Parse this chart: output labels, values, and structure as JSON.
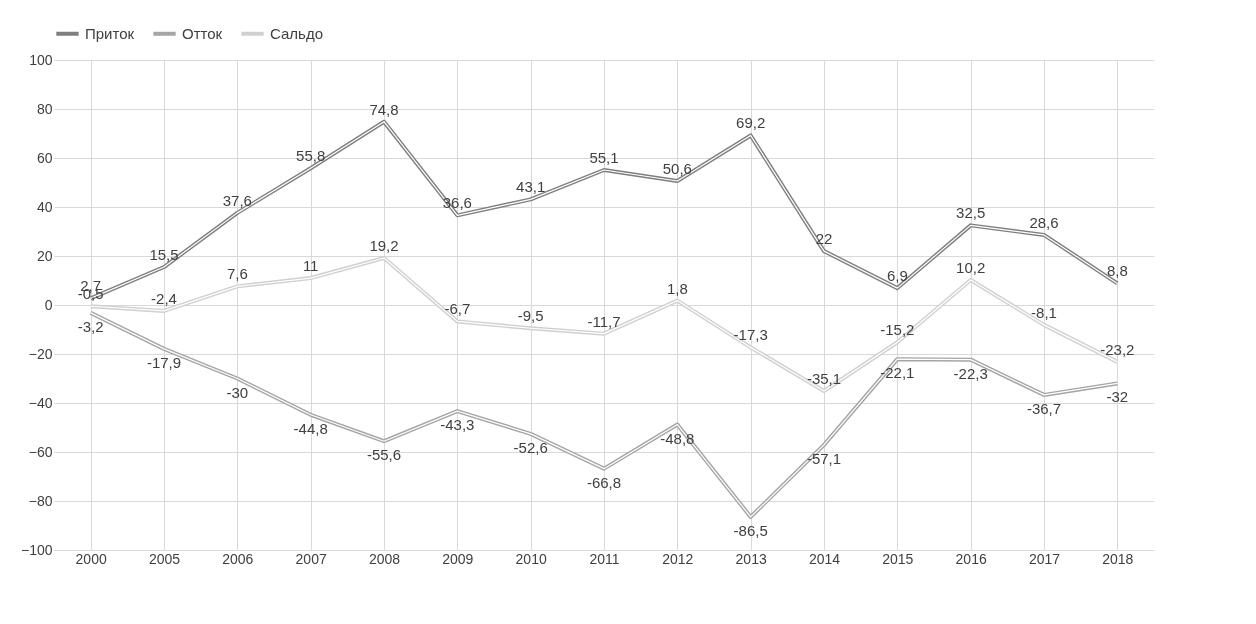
{
  "chart_data": {
    "type": "line",
    "categories": [
      "2000",
      "2005",
      "2006",
      "2007",
      "2008",
      "2009",
      "2010",
      "2011",
      "2012",
      "2013",
      "2014",
      "2015",
      "2016",
      "2017",
      "2018"
    ],
    "series": [
      {
        "name": "Приток",
        "color": "#7f7f7f",
        "values": [
          2.7,
          15.5,
          37.6,
          55.8,
          74.8,
          36.6,
          43.1,
          55.1,
          50.6,
          69.2,
          22,
          6.9,
          32.5,
          28.6,
          8.8
        ],
        "value_labels": [
          "2,7",
          "15,5",
          "37,6",
          "55,8",
          "74,8",
          "36,6",
          "43,1",
          "55,1",
          "50,6",
          "69,2",
          "22",
          "6,9",
          "32,5",
          "28,6",
          "8,8"
        ]
      },
      {
        "name": "Отток",
        "color": "#a5a5a5",
        "values": [
          -3.2,
          -17.9,
          -30,
          -44.8,
          -55.6,
          -43.3,
          -52.6,
          -66.8,
          -48.8,
          -86.5,
          -57.1,
          -22.1,
          -22.3,
          -36.7,
          -32
        ],
        "value_labels": [
          "-3,2",
          "-17,9",
          "-30",
          "-44,8",
          "-55,6",
          "-43,3",
          "-52,6",
          "-66,8",
          "-48,8",
          "-86,5",
          "-57,1",
          "-22,1",
          "-22,3",
          "-36,7",
          "-32"
        ]
      },
      {
        "name": "Сальдо",
        "color": "#d0d0d0",
        "values": [
          -0.5,
          -2.4,
          7.6,
          11,
          19.2,
          -6.7,
          -9.5,
          -11.7,
          1.8,
          -17.3,
          -35.1,
          -15.2,
          10.2,
          -8.1,
          -23.2
        ],
        "value_labels": [
          "-0,5",
          "-2,4",
          "7,6",
          "11",
          "19,2",
          "-6,7",
          "-9,5",
          "-11,7",
          "1,8",
          "-17,3",
          "-35,1",
          "-15,2",
          "10,2",
          "-8,1",
          "-23,2"
        ]
      }
    ],
    "ylim": [
      -100,
      100
    ],
    "yticks": [
      -100,
      -80,
      -60,
      -40,
      -20,
      0,
      20,
      40,
      60,
      80,
      100
    ],
    "grid": true,
    "legend": "top",
    "marker": "none",
    "line_style": "solid"
  }
}
